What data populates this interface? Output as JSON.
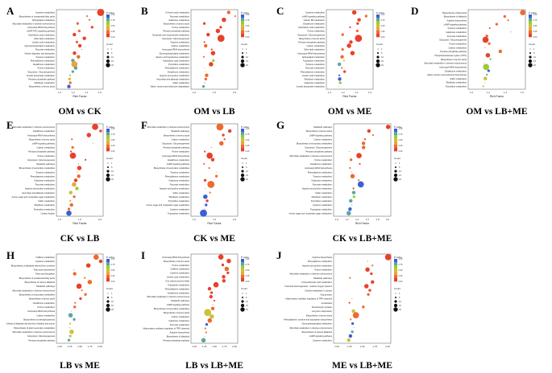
{
  "figure": {
    "panels": [
      {
        "letter": "A",
        "caption": "OM vs CK",
        "xlabel": "Rich Factor",
        "xticks": [
          "1.0",
          "1.2",
          "1.4",
          "1.6"
        ],
        "terms": [
          "Cysteine metabolism",
          "Biosynthesis of unsaturated fatty acids",
          "Sphingolipid metabolism",
          "Microbial metabolism in diverse environments",
          "Aminoacyl-tRNA biosynthesis",
          "cGMP-PKG signaling pathway",
          "Arachidonic acid metabolism",
          "Ether lipid metabolism",
          "Linoleic acid metabolism",
          "Glycerophospholipid metabolism",
          "Pyruvate metabolism",
          "Vitamin digestion and absorption",
          "Tyrosine metabolism",
          "Phenylalanine metabolism",
          "Glutathione metabolism",
          "Purine metabolism",
          "Glycolysis / Gluconeogenesis",
          "Inositol phosphate metabolism",
          "Pentose phosphate pathway",
          "Riboflavin metabolism",
          "Biosynthesis of amino acids"
        ]
      },
      {
        "letter": "B",
        "caption": "OM vs LB",
        "xlabel": "",
        "xticks": [
          "1.0",
          "1.5",
          "2.0"
        ],
        "terms": [
          "D-Amino acid metabolism",
          "Pyruvate metabolism",
          "Galactose metabolism",
          "Biosynthesis of amino acids",
          "Purine metabolism",
          "Pentose phosphate pathway",
          "Nicotinate and nicotinamide metabolism",
          "Glycolysis / Gluconeogenesis",
          "Tyrosine metabolism",
          "Carbon metabolism",
          "Aminoacyl-tRNA biosynthesis",
          "Glycerophospholipid metabolism",
          "Taurine and hypotaurine metabolism",
          "Arachidonic acid metabolism",
          "Pyrimidine metabolism",
          "Phenylalanine metabolism",
          "Glutathione metabolism",
          "Arginine and proline metabolism",
          "Ascorbate and aldarate metabolism",
          "Sulfur metabolism",
          "Valine, leucine and isoleucine degradation"
        ]
      },
      {
        "letter": "C",
        "caption": "OM vs ME",
        "xlabel": "Rich Factor",
        "xticks": [
          "1.0",
          "1.2",
          "1.4",
          "1.6"
        ],
        "terms": [
          "Cysteine metabolism",
          "cAMP signaling pathway",
          "Vitamin B6 metabolism",
          "Glutathione metabolism",
          "Arachidonic acid metabolism",
          "Purine metabolism",
          "Glycolysis / Gluconeogenesis",
          "Biosynthesis of amino acids",
          "Pentose phosphate pathway",
          "Carbon metabolism",
          "Ether lipid metabolism",
          "Aminoacyl-tRNA biosynthesis",
          "Sphingolipid metabolism",
          "Tryptophan metabolism",
          "Tyrosine metabolism",
          "Pyruvate metabolism",
          "Phenylalanine metabolism",
          "Linoleic acid metabolism",
          "Riboflavin metabolism",
          "Galactose metabolism",
          "Inositol phosphate metabolism"
        ]
      },
      {
        "letter": "D",
        "caption": "OM vs LB+ME",
        "xlabel": "Rich Factor",
        "xticks": [
          "1.0",
          "1.2",
          "1.4",
          "1.6"
        ],
        "terms": [
          "Biosynthesis of flavonoids",
          "Biosynthesis of alkaloids",
          "Arginine biosynthesis",
          "cAMP signaling pathway",
          "Tyrosine metabolism",
          "Galactose metabolism",
          "Pyruvate metabolism",
          "Glycolysis / Gluconeogenesis",
          "Purine metabolism",
          "Carbon metabolism",
          "Pentose phosphate pathway",
          "Phosphotransferase system (PTS)",
          "Biosynthesis of amino acids",
          "Microbial metabolism in diverse environments",
          "Aminoacyl-tRNA biosynthesis",
          "Glutathione metabolism",
          "Valine, leucine and isoleucine biosynthesis",
          "Sulfur metabolism",
          "Riboflavin metabolism",
          "Pyrimidine metabolism"
        ]
      },
      {
        "letter": "E",
        "caption": "CK vs LB",
        "xlabel": "Rich Factor",
        "xticks": [
          "1.0",
          "1.5",
          "2.0"
        ],
        "terms": [
          "Microbial metabolism in diverse environments",
          "Glutathione metabolism",
          "Aminoacyl-tRNA biosynthesis",
          "Biosynthesis of amino acids",
          "cAMP signaling pathway",
          "Carbon metabolism",
          "Pentose phosphate pathway",
          "Purine metabolism",
          "Glycolysis / Gluconeogenesis",
          "Metabolic pathways",
          "Biosynthesis of secondary metabolites",
          "Tyrosine metabolism",
          "Phenylalanine metabolism",
          "Galactose metabolism",
          "Pyruvate metabolism",
          "Arginine and proline metabolism",
          "Ascorbate and aldarate metabolism",
          "Amino sugar and nucleotide sugar metabolism",
          "Sulfur metabolism",
          "Riboflavin metabolism",
          "Pyrimidine metabolism",
          "Carbon fixation"
        ]
      },
      {
        "letter": "F",
        "caption": "CK vs ME",
        "xlabel": "Rich Factor",
        "xticks": [
          "1.0",
          "1.5",
          "2.0"
        ],
        "terms": [
          "Microbial metabolism in diverse environments",
          "Metabolic pathways",
          "Biosynthesis of amino acids",
          "Carbon metabolism",
          "Glycolysis / Gluconeogenesis",
          "Pentose phosphate pathway",
          "Purine metabolism",
          "Aminoacyl-tRNA biosynthesis",
          "Glutathione metabolism",
          "cAMP signaling pathway",
          "Biosynthesis of secondary metabolites",
          "Tyrosine metabolism",
          "Phenylalanine metabolism",
          "Galactose metabolism",
          "Pyruvate metabolism",
          "Arginine and proline metabolism",
          "Sulfur metabolism",
          "Riboflavin metabolism",
          "Pyrimidine metabolism",
          "Amino sugar and nucleotide sugar metabolism",
          "Cysteine metabolism",
          "Tryptophan metabolism"
        ]
      },
      {
        "letter": "G",
        "caption": "CK vs LB+ME",
        "xlabel": "Rich Factor",
        "xticks": [
          "1.0",
          "1.2",
          "1.4",
          "1.6",
          "1.8",
          "2.0"
        ],
        "terms": [
          "Metabolic pathways",
          "Biosynthesis of amino acids",
          "cAMP signaling pathway",
          "Carbon metabolism",
          "Biosynthesis of secondary metabolites",
          "Glycolysis / Gluconeogenesis",
          "Pentose phosphate pathway",
          "Microbial metabolism in diverse environments",
          "Purine metabolism",
          "Glutathione metabolism",
          "Aminoacyl-tRNA biosynthesis",
          "Phenylalanine metabolism",
          "Tyrosine metabolism",
          "Galactose metabolism",
          "Pyruvate metabolism",
          "Arginine and proline metabolism",
          "Sulfur metabolism",
          "Riboflavin metabolism",
          "Pyrimidine metabolism",
          "Cysteine metabolism",
          "Tryptophan metabolism",
          "Amino sugar and nucleotide sugar metabolism"
        ]
      },
      {
        "letter": "H",
        "caption": "LB vs ME",
        "xlabel": "",
        "xticks": [
          "1.00",
          "1.25",
          "1.50",
          "1.75",
          "2.00"
        ],
        "terms": [
          "Caffeine metabolism",
          "Cysteine metabolism",
          "Biosynthesis of alkaloids derived from ornithine",
          "Fatty acid biosynthesis",
          "Fatty acid elongation",
          "Biosynthesis of unsaturated fatty acids",
          "Biosynthesis of various alkaloids",
          "Metabolic pathways",
          "Microbial metabolism in diverse environments",
          "Biosynthesis of secondary metabolites",
          "Biosynthesis of amino acids",
          "Glutathione metabolism",
          "Purine metabolism",
          "Aminoacyl-tRNA biosynthesis",
          "Carbon metabolism",
          "Biosynthesis of phenylpropanoids",
          "Biosynthesis of alkaloids derived from histidine and purine",
          "Biosynthesis of plant secondary metabolites",
          "Microbial metabolism in diverse environments",
          "Glycolysis / Gluconeogenesis",
          "Pentose phosphate pathway"
        ]
      },
      {
        "letter": "I",
        "caption": "LB vs LB+ME",
        "xlabel": "",
        "xticks": [
          "1.00",
          "1.25",
          "1.50",
          "1.75",
          "2.00"
        ],
        "terms": [
          "Aminoacyl-tRNA biosynthesis",
          "Biosynthesis of amino acids",
          "Purine metabolism",
          "Caffeine metabolism",
          "Cysteine metabolism",
          "Linoleic acid metabolism",
          "One carbon pool by folate",
          "Tryptophan metabolism",
          "Phenylalanine metabolism",
          "Glutathione metabolism",
          "Microbial metabolism in diverse environments",
          "Metabolic pathways",
          "cAMP signaling pathway",
          "Biosynthesis of secondary metabolites",
          "Biosynthesis of amino acids",
          "Carbon metabolism",
          "Galactose metabolism",
          "Pyruvate metabolism",
          "Inflammatory mediator regulation of TRP channels",
          "Arginine biosynthesis",
          "Biosynthesis of alkaloids",
          "Pentose phosphate pathway"
        ]
      },
      {
        "letter": "J",
        "caption": "ME vs LB+ME",
        "xlabel": "",
        "xticks": [
          "1.00",
          "1.25",
          "1.50",
          "1.75",
          "2.00"
        ],
        "terms": [
          "Arginine biosynthesis",
          "Phenylalanine metabolism",
          "Arginine and proline metabolism",
          "Purine metabolism",
          "Microbial metabolism in diverse environments",
          "Metabolic pathways",
          "2-Oxocarboxylic acid metabolism",
          "Chemical carcinogenesis - reactive oxygen species",
          "Choline metabolism in cancer",
          "Gap junction",
          "Inflammatory mediator regulation of TRP channels",
          "Amoebiasis",
          "Serotonergic synapse",
          "Long-term depression",
          "Biosynthesis of amino acids",
          "Phenylalanine, tyrosine and tryptophan biosynthesis",
          "Glycerophospholipid metabolism",
          "Microbial metabolism in diverse environments",
          "Biosynthesis of various alkaloids",
          "cAMP signaling pathway",
          "Cysteine metabolism"
        ]
      }
    ],
    "legend": {
      "pvalue_title": "P value",
      "pvalue_ticks": [
        "0.00",
        "0.25",
        "0.50",
        "0.75",
        "1.00"
      ],
      "count_title": "Count",
      "count_values": [
        "1",
        "5",
        "10",
        "15",
        "20"
      ]
    },
    "colors": {
      "low_p": "#e8412a",
      "mid_p": "#f0a23a",
      "mid2_p": "#9acd32",
      "high_p": "#3c5fd6"
    }
  },
  "chart_data": []
}
